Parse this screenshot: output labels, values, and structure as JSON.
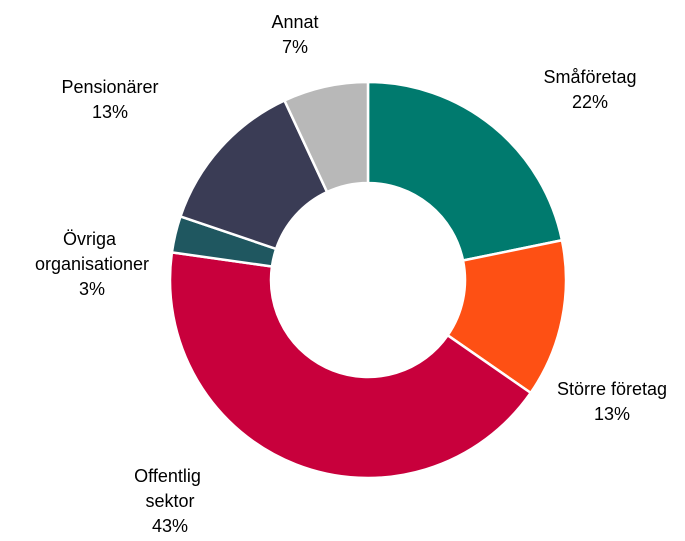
{
  "chart_data": {
    "type": "donut",
    "categories": [
      "Småföretag",
      "Större företag",
      "Offentlig sektor",
      "Övriga organisationer",
      "Pensionärer",
      "Annat"
    ],
    "values": [
      22,
      13,
      43,
      3,
      13,
      7
    ],
    "value_labels": [
      "22%",
      "13%",
      "43%",
      "3%",
      "13%",
      "7%"
    ],
    "colors": [
      "#007a6e",
      "#fe5014",
      "#c8003c",
      "#1f5760",
      "#3a3c55",
      "#b8b8b8"
    ]
  }
}
